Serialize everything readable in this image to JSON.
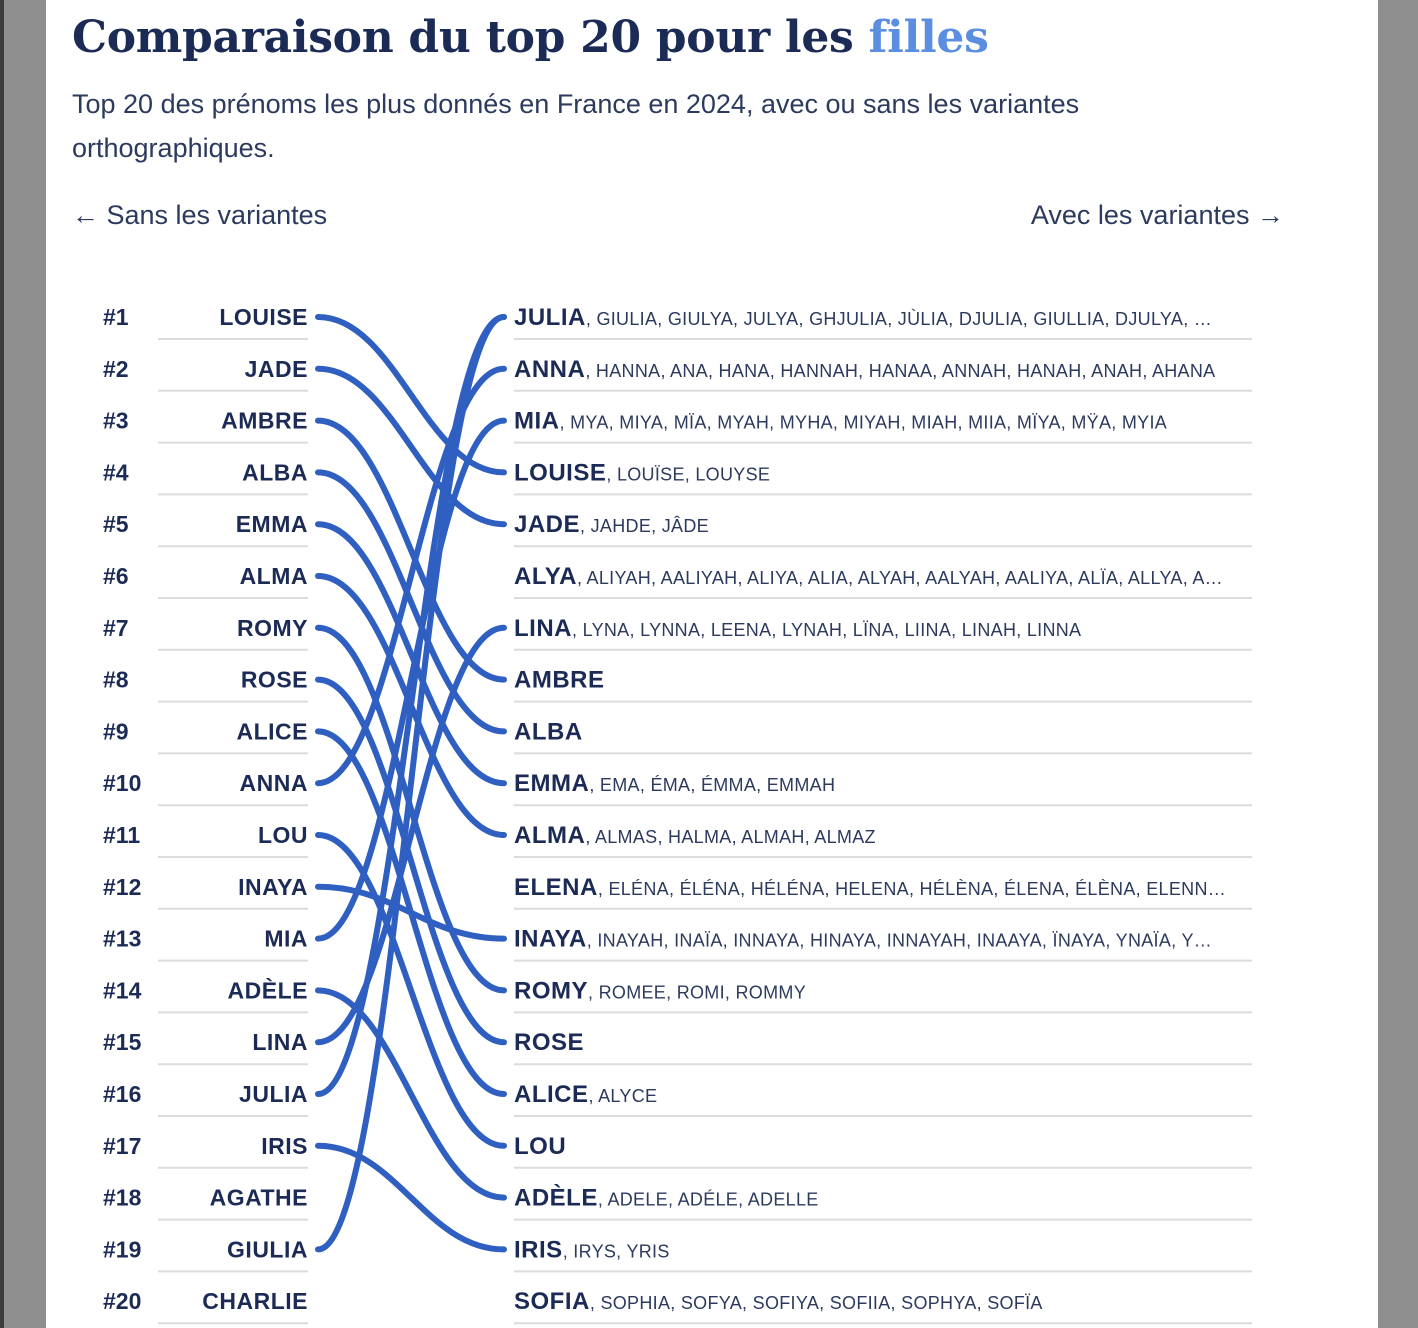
{
  "title": {
    "prefix": "Comparaison du top 20 pour les",
    "highlight": "filles"
  },
  "subtitle": "Top 20 des prénoms les plus donnés en France en 2024, avec ou sans les variantes orthographiques.",
  "nav": {
    "left_label": "← Sans les variantes",
    "right_label": "Avec les variantes →"
  },
  "colors": {
    "link": "#2f5fc0",
    "title": "#1c2b55",
    "highlight": "#5b8ee0"
  },
  "chart_data": {
    "type": "bump",
    "left_column": [
      {
        "rank": "#1",
        "name": "LOUISE"
      },
      {
        "rank": "#2",
        "name": "JADE"
      },
      {
        "rank": "#3",
        "name": "AMBRE"
      },
      {
        "rank": "#4",
        "name": "ALBA"
      },
      {
        "rank": "#5",
        "name": "EMMA"
      },
      {
        "rank": "#6",
        "name": "ALMA"
      },
      {
        "rank": "#7",
        "name": "ROMY"
      },
      {
        "rank": "#8",
        "name": "ROSE"
      },
      {
        "rank": "#9",
        "name": "ALICE"
      },
      {
        "rank": "#10",
        "name": "ANNA"
      },
      {
        "rank": "#11",
        "name": "LOU"
      },
      {
        "rank": "#12",
        "name": "INAYA"
      },
      {
        "rank": "#13",
        "name": "MIA"
      },
      {
        "rank": "#14",
        "name": "ADÈLE"
      },
      {
        "rank": "#15",
        "name": "LINA"
      },
      {
        "rank": "#16",
        "name": "JULIA"
      },
      {
        "rank": "#17",
        "name": "IRIS"
      },
      {
        "rank": "#18",
        "name": "AGATHE"
      },
      {
        "rank": "#19",
        "name": "GIULIA"
      },
      {
        "rank": "#20",
        "name": "CHARLIE"
      }
    ],
    "right_column": [
      {
        "name": "JULIA",
        "variants": ", GIULIA, GIULYA, JULYA, GHJULIA, JÙLIA, DJULIA, GIULLIA, DJULYA, …"
      },
      {
        "name": "ANNA",
        "variants": ", HANNA, ANA, HANA, HANNAH, HANAA, ANNAH, HANAH, ANAH, AHANA"
      },
      {
        "name": "MIA",
        "variants": ", MYA, MIYA, MÏA, MYAH, MYHA, MIYAH, MIAH, MIIA, MÏYA, MŸA, MYIA"
      },
      {
        "name": "LOUISE",
        "variants": ", LOUÏSE, LOUYSE"
      },
      {
        "name": "JADE",
        "variants": ", JAHDE, JÂDE"
      },
      {
        "name": "ALYA",
        "variants": ", ALIYAH, AALIYAH, ALIYA, ALIA, ALYAH, AALYAH, AALIYA, ALÏA, ALLYA, A…"
      },
      {
        "name": "LINA",
        "variants": ", LYNA, LYNNA, LEENA, LYNAH, LÏNA, LIINA, LINAH, LINNA"
      },
      {
        "name": "AMBRE",
        "variants": ""
      },
      {
        "name": "ALBA",
        "variants": ""
      },
      {
        "name": "EMMA",
        "variants": ", EMA, ÉMA, ÉMMA, EMMAH"
      },
      {
        "name": "ALMA",
        "variants": ", ALMAS, HALMA, ALMAH, ALMAZ"
      },
      {
        "name": "ELENA",
        "variants": ", ELÉNA, ÉLÉNA, HÉLÉNA, HELENA, HÉLÈNA, ÉLENA, ÉLÈNA, ELENN…"
      },
      {
        "name": "INAYA",
        "variants": ", INAYAH, INAÏA, INNAYA, HINAYA, INNAYAH, INAAYA, ÏNAYA, YNAÏA, Y…"
      },
      {
        "name": "ROMY",
        "variants": ", ROMEE, ROMI, ROMMY"
      },
      {
        "name": "ROSE",
        "variants": ""
      },
      {
        "name": "ALICE",
        "variants": ", ALYCE"
      },
      {
        "name": "LOU",
        "variants": ""
      },
      {
        "name": "ADÈLE",
        "variants": ", ADELE, ADÉLE, ADELLE"
      },
      {
        "name": "IRIS",
        "variants": ", IRYS, YRIS"
      },
      {
        "name": "SOFIA",
        "variants": ", SOPHIA, SOFYA, SOFIYA, SOFIIA, SOPHYA, SOFÏA"
      }
    ],
    "links": [
      {
        "from_rank": 1,
        "to_rank": 4
      },
      {
        "from_rank": 2,
        "to_rank": 5
      },
      {
        "from_rank": 3,
        "to_rank": 8
      },
      {
        "from_rank": 4,
        "to_rank": 9
      },
      {
        "from_rank": 5,
        "to_rank": 10
      },
      {
        "from_rank": 6,
        "to_rank": 11
      },
      {
        "from_rank": 7,
        "to_rank": 14
      },
      {
        "from_rank": 8,
        "to_rank": 15
      },
      {
        "from_rank": 9,
        "to_rank": 16
      },
      {
        "from_rank": 10,
        "to_rank": 2
      },
      {
        "from_rank": 11,
        "to_rank": 17
      },
      {
        "from_rank": 12,
        "to_rank": 13
      },
      {
        "from_rank": 13,
        "to_rank": 3
      },
      {
        "from_rank": 14,
        "to_rank": 18
      },
      {
        "from_rank": 15,
        "to_rank": 7
      },
      {
        "from_rank": 16,
        "to_rank": 1
      },
      {
        "from_rank": 17,
        "to_rank": 19
      },
      {
        "from_rank": 19,
        "to_rank": 1
      }
    ]
  }
}
